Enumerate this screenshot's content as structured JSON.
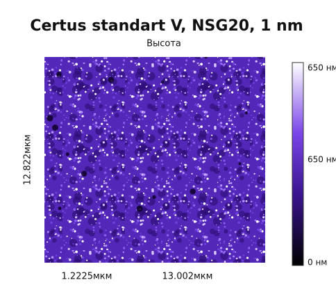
{
  "header": {
    "title": "Certus standart V,  NSG20, 1 nm",
    "subtitle": "Высота"
  },
  "axes": {
    "y_label": "12.822мкм",
    "x_labels": [
      "1.2225мкм",
      "13.002мкм"
    ]
  },
  "colorbar": {
    "labels": [
      "650 нм",
      "650 нм",
      "0 нм"
    ]
  }
}
